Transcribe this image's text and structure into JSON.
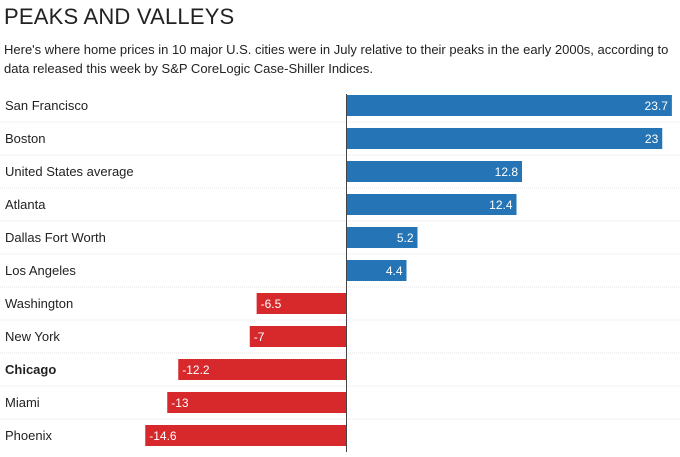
{
  "title": "PEAKS AND VALLEYS",
  "subtitle": "Here's where home prices in 10 major U.S. cities were in July relative to their peaks in the early 2000s, according to data released this week by S&P CoreLogic Case-Shiller Indices.",
  "colors": {
    "positive": "#2474b6",
    "negative": "#d7282c"
  },
  "chart_data": {
    "type": "bar",
    "orientation": "horizontal",
    "categories": [
      "San Francisco",
      "Boston",
      "United States average",
      "Atlanta",
      "Dallas Fort Worth",
      "Los Angeles",
      "Washington",
      "New York",
      "Chicago",
      "Miami",
      "Phoenix"
    ],
    "values": [
      23.7,
      23,
      12.8,
      12.4,
      5.2,
      4.4,
      -6.5,
      -7,
      -12.2,
      -13,
      -14.6
    ],
    "value_labels": [
      "23.7",
      "23",
      "12.8",
      "12.4",
      "5.2",
      "4.4",
      "-6.5",
      "-7",
      "-12.2",
      "-13",
      "-14.6"
    ],
    "highlighted": [
      "Chicago"
    ],
    "xlim": [
      -14.6,
      23.7
    ],
    "grid": false,
    "legend": "none"
  }
}
